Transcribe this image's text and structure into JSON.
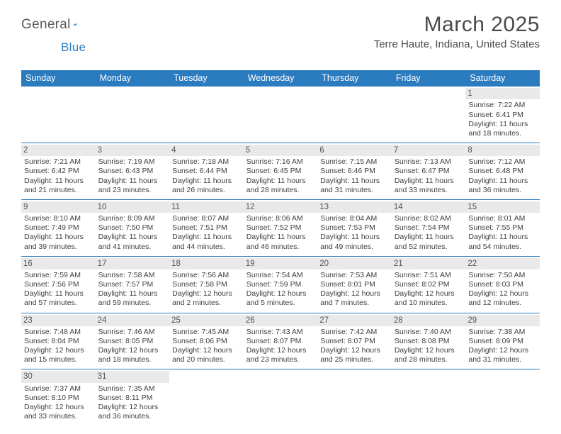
{
  "brand": {
    "text1": "General",
    "text2": "Blue",
    "mark_color": "#2b7bbf"
  },
  "title": "March 2025",
  "location": "Terre Haute, Indiana, United States",
  "colors": {
    "header_bg": "#2b7bbf",
    "header_text": "#ffffff",
    "cell_border": "#2b7bbf",
    "daynum_bg": "#e9e9e9",
    "body_text": "#404040"
  },
  "fonts": {
    "title_size": 30,
    "location_size": 15,
    "header_size": 12.5,
    "cell_size": 10.5
  },
  "day_headers": [
    "Sunday",
    "Monday",
    "Tuesday",
    "Wednesday",
    "Thursday",
    "Friday",
    "Saturday"
  ],
  "weeks": [
    [
      null,
      null,
      null,
      null,
      null,
      null,
      {
        "n": "1",
        "sunrise": "7:22 AM",
        "sunset": "6:41 PM",
        "day_h": "11",
        "day_m": "18"
      }
    ],
    [
      {
        "n": "2",
        "sunrise": "7:21 AM",
        "sunset": "6:42 PM",
        "day_h": "11",
        "day_m": "21"
      },
      {
        "n": "3",
        "sunrise": "7:19 AM",
        "sunset": "6:43 PM",
        "day_h": "11",
        "day_m": "23"
      },
      {
        "n": "4",
        "sunrise": "7:18 AM",
        "sunset": "6:44 PM",
        "day_h": "11",
        "day_m": "26"
      },
      {
        "n": "5",
        "sunrise": "7:16 AM",
        "sunset": "6:45 PM",
        "day_h": "11",
        "day_m": "28"
      },
      {
        "n": "6",
        "sunrise": "7:15 AM",
        "sunset": "6:46 PM",
        "day_h": "11",
        "day_m": "31"
      },
      {
        "n": "7",
        "sunrise": "7:13 AM",
        "sunset": "6:47 PM",
        "day_h": "11",
        "day_m": "33"
      },
      {
        "n": "8",
        "sunrise": "7:12 AM",
        "sunset": "6:48 PM",
        "day_h": "11",
        "day_m": "36"
      }
    ],
    [
      {
        "n": "9",
        "sunrise": "8:10 AM",
        "sunset": "7:49 PM",
        "day_h": "11",
        "day_m": "39"
      },
      {
        "n": "10",
        "sunrise": "8:09 AM",
        "sunset": "7:50 PM",
        "day_h": "11",
        "day_m": "41"
      },
      {
        "n": "11",
        "sunrise": "8:07 AM",
        "sunset": "7:51 PM",
        "day_h": "11",
        "day_m": "44"
      },
      {
        "n": "12",
        "sunrise": "8:06 AM",
        "sunset": "7:52 PM",
        "day_h": "11",
        "day_m": "46"
      },
      {
        "n": "13",
        "sunrise": "8:04 AM",
        "sunset": "7:53 PM",
        "day_h": "11",
        "day_m": "49"
      },
      {
        "n": "14",
        "sunrise": "8:02 AM",
        "sunset": "7:54 PM",
        "day_h": "11",
        "day_m": "52"
      },
      {
        "n": "15",
        "sunrise": "8:01 AM",
        "sunset": "7:55 PM",
        "day_h": "11",
        "day_m": "54"
      }
    ],
    [
      {
        "n": "16",
        "sunrise": "7:59 AM",
        "sunset": "7:56 PM",
        "day_h": "11",
        "day_m": "57"
      },
      {
        "n": "17",
        "sunrise": "7:58 AM",
        "sunset": "7:57 PM",
        "day_h": "11",
        "day_m": "59"
      },
      {
        "n": "18",
        "sunrise": "7:56 AM",
        "sunset": "7:58 PM",
        "day_h": "12",
        "day_m": "2"
      },
      {
        "n": "19",
        "sunrise": "7:54 AM",
        "sunset": "7:59 PM",
        "day_h": "12",
        "day_m": "5"
      },
      {
        "n": "20",
        "sunrise": "7:53 AM",
        "sunset": "8:01 PM",
        "day_h": "12",
        "day_m": "7"
      },
      {
        "n": "21",
        "sunrise": "7:51 AM",
        "sunset": "8:02 PM",
        "day_h": "12",
        "day_m": "10"
      },
      {
        "n": "22",
        "sunrise": "7:50 AM",
        "sunset": "8:03 PM",
        "day_h": "12",
        "day_m": "12"
      }
    ],
    [
      {
        "n": "23",
        "sunrise": "7:48 AM",
        "sunset": "8:04 PM",
        "day_h": "12",
        "day_m": "15"
      },
      {
        "n": "24",
        "sunrise": "7:46 AM",
        "sunset": "8:05 PM",
        "day_h": "12",
        "day_m": "18"
      },
      {
        "n": "25",
        "sunrise": "7:45 AM",
        "sunset": "8:06 PM",
        "day_h": "12",
        "day_m": "20"
      },
      {
        "n": "26",
        "sunrise": "7:43 AM",
        "sunset": "8:07 PM",
        "day_h": "12",
        "day_m": "23"
      },
      {
        "n": "27",
        "sunrise": "7:42 AM",
        "sunset": "8:07 PM",
        "day_h": "12",
        "day_m": "25"
      },
      {
        "n": "28",
        "sunrise": "7:40 AM",
        "sunset": "8:08 PM",
        "day_h": "12",
        "day_m": "28"
      },
      {
        "n": "29",
        "sunrise": "7:38 AM",
        "sunset": "8:09 PM",
        "day_h": "12",
        "day_m": "31"
      }
    ],
    [
      {
        "n": "30",
        "sunrise": "7:37 AM",
        "sunset": "8:10 PM",
        "day_h": "12",
        "day_m": "33"
      },
      {
        "n": "31",
        "sunrise": "7:35 AM",
        "sunset": "8:11 PM",
        "day_h": "12",
        "day_m": "36"
      },
      null,
      null,
      null,
      null,
      null
    ]
  ],
  "labels": {
    "sunrise": "Sunrise:",
    "sunset": "Sunset:",
    "daylight": "Daylight:",
    "hours": "hours",
    "and": "and",
    "minutes": "minutes."
  }
}
